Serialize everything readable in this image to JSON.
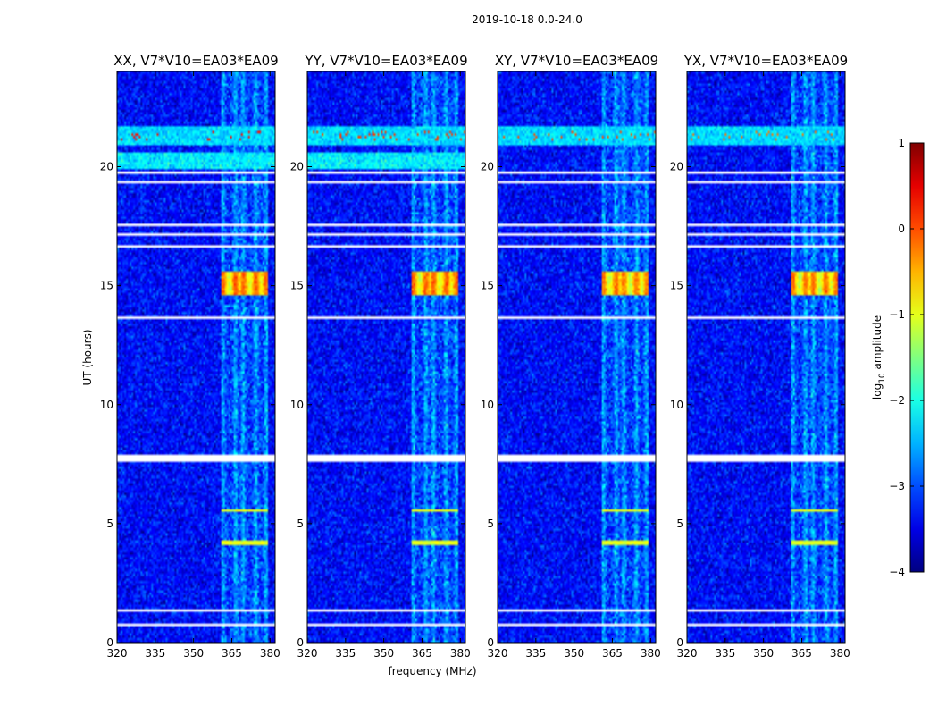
{
  "figure_title": "2019-10-18 0.0-24.0",
  "chart_data": {
    "type": "heatmap",
    "title": "2019-10-18 0.0-24.0",
    "xlabel": "frequency (MHz)",
    "ylabel": "UT (hours)",
    "xlim": [
      320,
      382
    ],
    "ylim": [
      0,
      24
    ],
    "xticks": [
      320,
      335,
      350,
      365,
      380
    ],
    "yticks": [
      0,
      5,
      10,
      15,
      20
    ],
    "panels": [
      {
        "title": "XX, V7*V10=EA03*EA09",
        "band_peak": 0.0,
        "event_21h_peak": 0.3,
        "xtick_labels": [
          "320",
          "335",
          "350",
          "365",
          "380"
        ],
        "ytick_labels": [
          "0",
          "5",
          "10",
          "15",
          "20"
        ]
      },
      {
        "title": "YY, V7*V10=EA03*EA09",
        "band_peak": 0.0,
        "event_21h_peak": 0.1,
        "xtick_labels": [
          "320",
          "335",
          "350",
          "365",
          "380"
        ],
        "ytick_labels": [
          "0",
          "5",
          "10",
          "15",
          "20"
        ]
      },
      {
        "title": "XY, V7*V10=EA03*EA09",
        "band_peak": -0.1,
        "event_21h_peak": 0.0,
        "xtick_labels": [
          "320",
          "335",
          "350",
          "365",
          "380"
        ],
        "ytick_labels": [
          "0",
          "5",
          "10",
          "15",
          "20"
        ]
      },
      {
        "title": "YX, V7*V10=EA03*EA09",
        "band_peak": -0.1,
        "event_21h_peak": -0.2,
        "xtick_labels": [
          "320",
          "335",
          "350",
          "365",
          "380"
        ],
        "ytick_labels": [
          "0",
          "5",
          "10",
          "15",
          "20"
        ]
      }
    ],
    "features": {
      "background_level": -3.0,
      "rfi_channels_mhz": [
        361.5,
        366.5,
        369.5,
        374.5,
        378.5
      ],
      "strong_band_mhz": [
        361,
        379
      ],
      "strong_band_hours": [
        14.6,
        15.6
      ],
      "event_21h_hours": [
        20.9,
        21.7
      ],
      "gap_hours": [
        [
          7.6,
          7.9
        ]
      ]
    },
    "colorbar": {
      "label": "log10 amplitude",
      "label_base": "log",
      "label_sub": "10",
      "label_rest": " amplitude",
      "min": -4,
      "max": 1,
      "ticks": [
        1,
        0,
        -1,
        -2,
        -3,
        -4
      ],
      "tick_labels": [
        "1",
        "0",
        "−1",
        "−2",
        "−3",
        "−4"
      ],
      "colormap": "jet"
    }
  }
}
